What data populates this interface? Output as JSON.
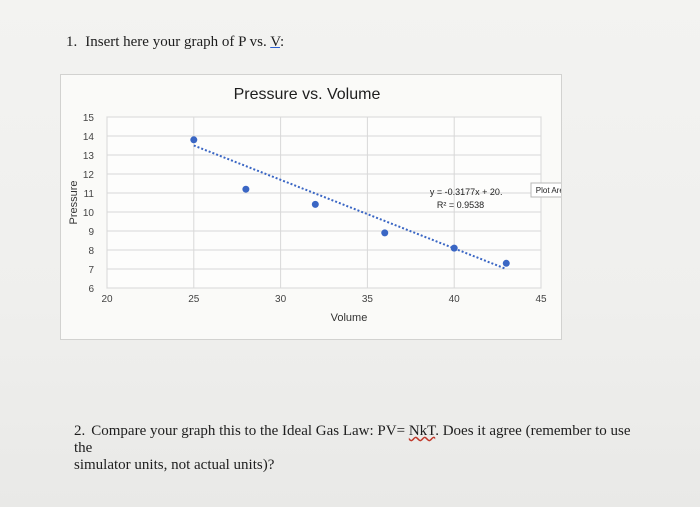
{
  "question1": {
    "number": "1.",
    "text_before": "Insert here your graph of P vs.",
    "var": "V",
    "text_after": ":"
  },
  "question2": {
    "number": "2.",
    "line1_a": "Compare your graph this to the Ideal Gas Law: PV=",
    "nkt": "NkT",
    "line1_b": ". Does it agree (remember to use the",
    "line2": "simulator units, not actual units)?"
  },
  "colors": {
    "point": "#3a66c4",
    "trendline": "#3a66c4",
    "grid": "#d8d8d8",
    "text": "#1e1e1e"
  },
  "chart_data": {
    "type": "scatter",
    "title": "Pressure vs. Volume",
    "xlabel": "Volume",
    "ylabel": "Pressure",
    "xlim": [
      20,
      45
    ],
    "ylim": [
      6,
      15
    ],
    "x_ticks": [
      20,
      25,
      30,
      35,
      40,
      45
    ],
    "y_ticks": [
      6,
      7,
      8,
      9,
      10,
      11,
      12,
      13,
      14,
      15
    ],
    "grid": true,
    "series": [
      {
        "points": [
          {
            "x": 25,
            "y": 13.8
          },
          {
            "x": 28,
            "y": 11.2
          },
          {
            "x": 32,
            "y": 10.4
          },
          {
            "x": 36,
            "y": 8.9
          },
          {
            "x": 40,
            "y": 8.1
          },
          {
            "x": 43,
            "y": 7.3
          }
        ]
      }
    ],
    "trendline": {
      "style": "dotted",
      "x_range": [
        25,
        43
      ],
      "equation": "y = -0.3177x + 20.",
      "r_squared": "R² = 0.9538"
    },
    "tooltip": "Plot Area"
  }
}
